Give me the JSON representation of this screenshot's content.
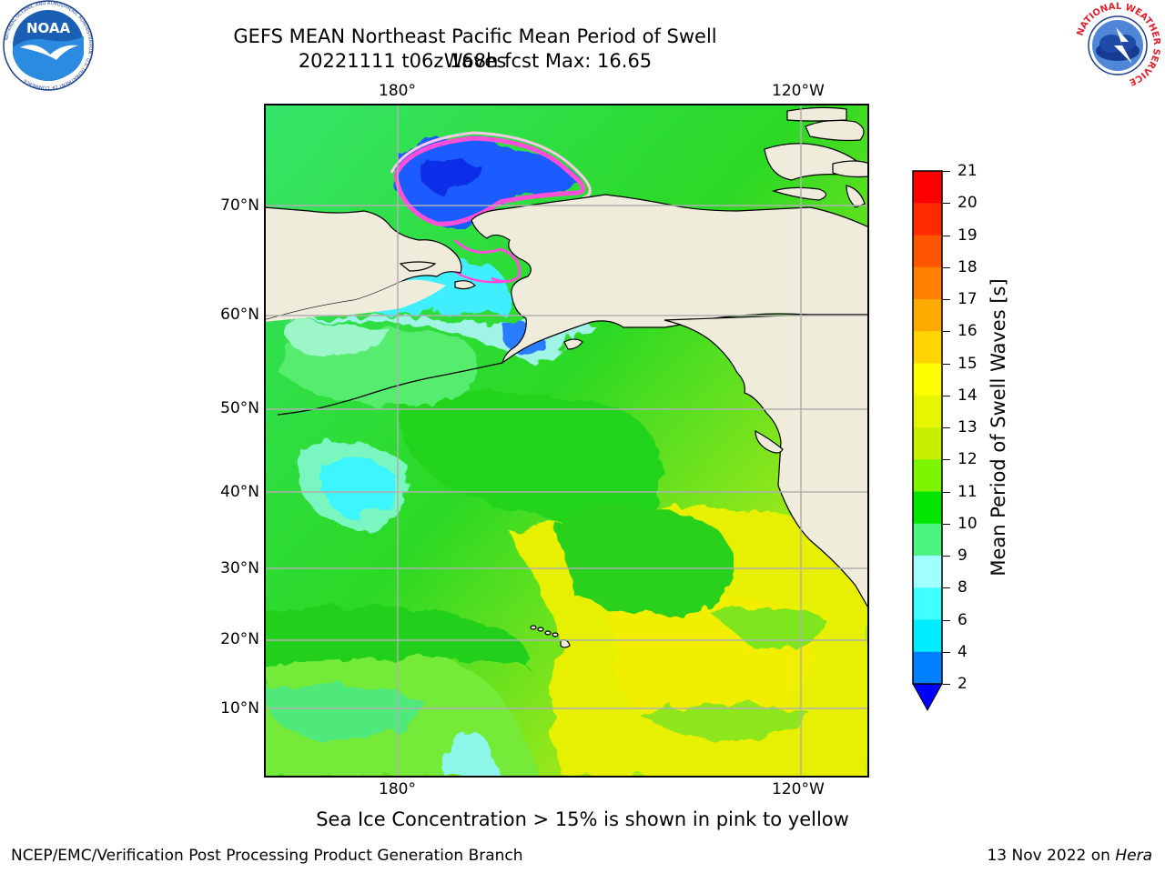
{
  "title": {
    "line1": "GEFS MEAN Northeast Pacific Mean Period of Swell Waves",
    "line2": "20221111 t06z 168h fcst   Max: 16.65"
  },
  "map": {
    "lon_top_labels": [
      "180°",
      "120°W"
    ],
    "lon_bottom_labels": [
      "180°",
      "120°W"
    ],
    "lat_labels": [
      "70°N",
      "60°N",
      "50°N",
      "40°N",
      "30°N",
      "20°N",
      "10°N"
    ],
    "land_color": "#efecdc",
    "gridline_color": "#b0b0b0"
  },
  "colorbar": {
    "label": "Mean Period of Swell Waves [s]",
    "ticks": [
      "21",
      "20",
      "19",
      "18",
      "17",
      "16",
      "15",
      "14",
      "13",
      "12",
      "11",
      "10",
      "9",
      "8",
      "6",
      "4",
      "2"
    ],
    "colors_top_to_bottom": [
      "#ff0000",
      "#ff2a00",
      "#ff5500",
      "#ff8000",
      "#ffaa00",
      "#ffd400",
      "#ffff00",
      "#e6f500",
      "#c8ee00",
      "#7df500",
      "#00e600",
      "#4df580",
      "#a0ffff",
      "#40ffff",
      "#00ecff",
      "#0080ff",
      "#0000ff"
    ]
  },
  "note": "Sea Ice Concentration > 15% is shown in pink to yellow",
  "footer": {
    "left": "NCEP/EMC/Verification Post Processing Product Generation Branch",
    "right_text": "13 Nov 2022 on ",
    "right_italic": "Hera"
  },
  "logos": {
    "left": "NOAA",
    "left_ring": "NATIONAL OCEANIC AND ATMOSPHERIC ADMINISTRATION · U.S. DEPARTMENT OF COMMERCE",
    "right_ring": "NATIONAL WEATHER SERVICE"
  }
}
